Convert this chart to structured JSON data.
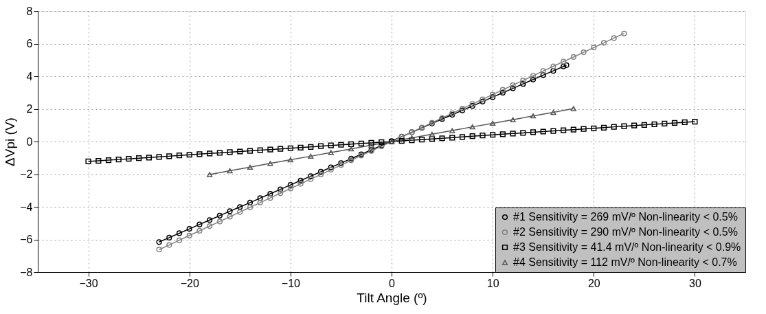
{
  "chart_data": {
    "type": "line",
    "xlabel": "Tilt Angle (º)",
    "ylabel": "ΔVpi (V)",
    "xlim": [
      -35,
      35
    ],
    "xticks": [
      -30,
      -20,
      -10,
      0,
      10,
      20,
      30
    ],
    "ylim": [
      -8,
      8
    ],
    "yticks": [
      -8,
      -6,
      -4,
      -2,
      0,
      2,
      4,
      6,
      8
    ],
    "grid": true,
    "legend": "bottom right",
    "line_style": "solid",
    "series": [
      {
        "name": "#1 Sensitivity = 269 mV/º  Non-linearity < 0.5%",
        "color": "#000000",
        "marker": "circle",
        "x": [
          -23,
          -22,
          -21,
          -20,
          -19,
          -18,
          -17,
          -16,
          -15,
          -14,
          -13,
          -12,
          -11,
          -10,
          -9,
          -8,
          -7,
          -6,
          -5,
          -4,
          -3,
          -2,
          -1,
          0,
          1,
          2,
          3,
          4,
          5,
          6,
          7,
          8,
          9,
          10,
          11,
          12,
          13,
          14,
          15,
          16,
          17,
          17.3
        ],
        "values": [
          -6.16,
          -5.89,
          -5.62,
          -5.35,
          -5.08,
          -4.81,
          -4.54,
          -4.27,
          -4.01,
          -3.74,
          -3.47,
          -3.2,
          -2.93,
          -2.66,
          -2.39,
          -2.12,
          -1.85,
          -1.58,
          -1.32,
          -1.05,
          -0.78,
          -0.51,
          -0.24,
          0.03,
          0.3,
          0.57,
          0.84,
          1.11,
          1.38,
          1.64,
          1.91,
          2.18,
          2.45,
          2.72,
          2.99,
          3.26,
          3.53,
          3.8,
          4.07,
          4.33,
          4.6,
          4.68
        ]
      },
      {
        "name": "#2 Sensitivity = 290 mV/º  Non-linearity < 0.5%",
        "color": "#808080",
        "marker": "circle",
        "x": [
          -23,
          -22,
          -21,
          -20,
          -19,
          -18,
          -17,
          -16,
          -15,
          -14,
          -13,
          -12,
          -11,
          -10,
          -9,
          -8,
          -7,
          -6,
          -5,
          -4,
          -3,
          -2,
          -1,
          0,
          1,
          2,
          3,
          4,
          5,
          6,
          7,
          8,
          9,
          10,
          11,
          12,
          13,
          14,
          15,
          16,
          17,
          18,
          19,
          20,
          21,
          22,
          23
        ],
        "values": [
          -6.62,
          -6.34,
          -6.05,
          -5.76,
          -5.47,
          -5.18,
          -4.9,
          -4.61,
          -4.32,
          -4.03,
          -3.74,
          -3.46,
          -3.17,
          -2.88,
          -2.59,
          -2.3,
          -2.02,
          -1.73,
          -1.44,
          -1.15,
          -0.86,
          -0.58,
          -0.29,
          0,
          0.29,
          0.58,
          0.86,
          1.15,
          1.44,
          1.73,
          2.02,
          2.3,
          2.59,
          2.88,
          3.17,
          3.46,
          3.74,
          4.03,
          4.32,
          4.61,
          4.9,
          5.18,
          5.47,
          5.76,
          6.05,
          6.34,
          6.62
        ]
      },
      {
        "name": "#3 Sensitivity = 41.4 mV/º Non-linearity < 0.9%",
        "color": "#000000",
        "marker": "square",
        "x": [
          -30,
          -29,
          -28,
          -27,
          -26,
          -25,
          -24,
          -23,
          -22,
          -21,
          -20,
          -19,
          -18,
          -17,
          -16,
          -15,
          -14,
          -13,
          -12,
          -11,
          -10,
          -9,
          -8,
          -7,
          -6,
          -5,
          -4,
          -3,
          -2,
          -1,
          0,
          1,
          2,
          3,
          4,
          5,
          6,
          7,
          8,
          9,
          10,
          11,
          12,
          13,
          14,
          15,
          16,
          17,
          18,
          19,
          20,
          21,
          22,
          23,
          24,
          25,
          26,
          27,
          28,
          29,
          30
        ],
        "values": [
          -1.22,
          -1.18,
          -1.14,
          -1.1,
          -1.06,
          -1.02,
          -0.98,
          -0.94,
          -0.9,
          -0.85,
          -0.81,
          -0.77,
          -0.73,
          -0.69,
          -0.65,
          -0.61,
          -0.57,
          -0.53,
          -0.49,
          -0.45,
          -0.41,
          -0.37,
          -0.33,
          -0.28,
          -0.24,
          -0.2,
          -0.16,
          -0.12,
          -0.08,
          -0.04,
          0,
          0.04,
          0.08,
          0.12,
          0.16,
          0.2,
          0.24,
          0.28,
          0.33,
          0.37,
          0.41,
          0.45,
          0.49,
          0.53,
          0.57,
          0.61,
          0.65,
          0.69,
          0.73,
          0.77,
          0.81,
          0.85,
          0.9,
          0.94,
          0.98,
          1.02,
          1.06,
          1.1,
          1.14,
          1.18,
          1.22
        ]
      },
      {
        "name": "#4 Sensitivity = 112 mV/º  Non-linearity < 0.7%",
        "color": "#555555",
        "marker": "triangle",
        "x": [
          -18,
          -16,
          -14,
          -12,
          -10,
          -8,
          -6,
          -4,
          -2,
          0,
          2,
          4,
          6,
          8,
          10,
          12,
          14,
          16,
          18
        ],
        "values": [
          -2.02,
          -1.79,
          -1.57,
          -1.34,
          -1.12,
          -0.9,
          -0.67,
          -0.45,
          -0.22,
          0,
          0.22,
          0.45,
          0.67,
          0.9,
          1.12,
          1.34,
          1.57,
          1.79,
          2.02
        ]
      }
    ]
  }
}
